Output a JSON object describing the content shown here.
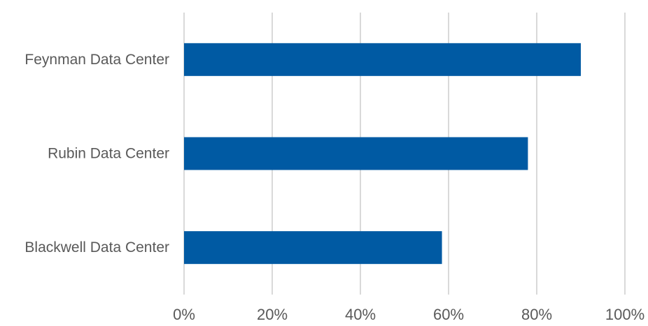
{
  "chart_data": {
    "type": "bar",
    "orientation": "horizontal",
    "categories": [
      "Feynman Data Center",
      "Rubin Data Center",
      "Blackwell Data Center"
    ],
    "values": [
      90,
      78,
      58.5
    ],
    "value_unit": "%",
    "xlim": [
      0,
      100
    ],
    "x_ticks": [
      0,
      20,
      40,
      60,
      80,
      100
    ],
    "x_tick_labels": [
      "0%",
      "20%",
      "40%",
      "60%",
      "80%",
      "100%"
    ],
    "title": "",
    "xlabel": "",
    "ylabel": "",
    "grid": "vertical",
    "legend": "none",
    "bar_color": "#005AA3",
    "grid_color": "#D9D9D9",
    "label_color": "#595959"
  }
}
